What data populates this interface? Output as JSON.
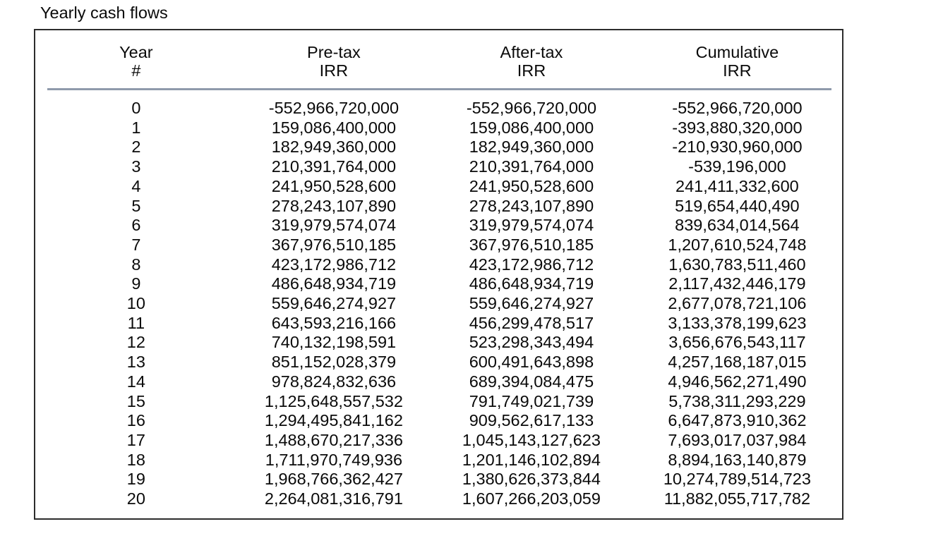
{
  "page": {
    "title": "Yearly cash flows"
  },
  "table": {
    "columns": [
      {
        "line1": "Year",
        "line2": "#"
      },
      {
        "line1": "Pre-tax",
        "line2": "IRR"
      },
      {
        "line1": "After-tax",
        "line2": "IRR"
      },
      {
        "line1": "Cumulative",
        "line2": "IRR"
      }
    ],
    "rows": [
      [
        "0",
        "-552,966,720,000",
        "-552,966,720,000",
        "-552,966,720,000"
      ],
      [
        "1",
        "159,086,400,000",
        "159,086,400,000",
        "-393,880,320,000"
      ],
      [
        "2",
        "182,949,360,000",
        "182,949,360,000",
        "-210,930,960,000"
      ],
      [
        "3",
        "210,391,764,000",
        "210,391,764,000",
        "-539,196,000"
      ],
      [
        "4",
        "241,950,528,600",
        "241,950,528,600",
        "241,411,332,600"
      ],
      [
        "5",
        "278,243,107,890",
        "278,243,107,890",
        "519,654,440,490"
      ],
      [
        "6",
        "319,979,574,074",
        "319,979,574,074",
        "839,634,014,564"
      ],
      [
        "7",
        "367,976,510,185",
        "367,976,510,185",
        "1,207,610,524,748"
      ],
      [
        "8",
        "423,172,986,712",
        "423,172,986,712",
        "1,630,783,511,460"
      ],
      [
        "9",
        "486,648,934,719",
        "486,648,934,719",
        "2,117,432,446,179"
      ],
      [
        "10",
        "559,646,274,927",
        "559,646,274,927",
        "2,677,078,721,106"
      ],
      [
        "11",
        "643,593,216,166",
        "456,299,478,517",
        "3,133,378,199,623"
      ],
      [
        "12",
        "740,132,198,591",
        "523,298,343,494",
        "3,656,676,543,117"
      ],
      [
        "13",
        "851,152,028,379",
        "600,491,643,898",
        "4,257,168,187,015"
      ],
      [
        "14",
        "978,824,832,636",
        "689,394,084,475",
        "4,946,562,271,490"
      ],
      [
        "15",
        "1,125,648,557,532",
        "791,749,021,739",
        "5,738,311,293,229"
      ],
      [
        "16",
        "1,294,495,841,162",
        "909,562,617,133",
        "6,647,873,910,362"
      ],
      [
        "17",
        "1,488,670,217,336",
        "1,045,143,127,623",
        "7,693,017,037,984"
      ],
      [
        "18",
        "1,711,970,749,936",
        "1,201,146,102,894",
        "8,894,163,140,879"
      ],
      [
        "19",
        "1,968,766,362,427",
        "1,380,626,373,844",
        "10,274,789,514,723"
      ],
      [
        "20",
        "2,264,081,316,791",
        "1,607,266,203,059",
        "11,882,055,717,782"
      ]
    ]
  },
  "colors": {
    "header_rule": "#8f9aab",
    "box_border": "#2c2c2c",
    "text": "#0a0a0a",
    "background": "#ffffff"
  }
}
